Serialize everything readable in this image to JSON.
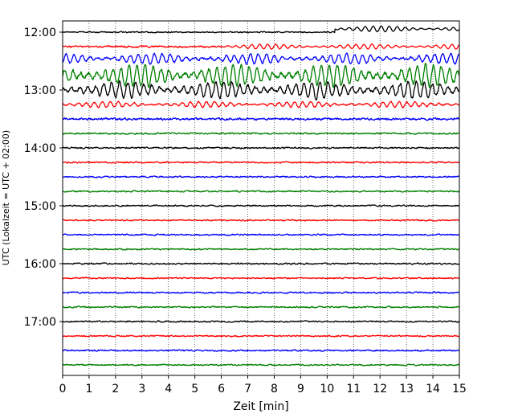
{
  "chart_data": {
    "type": "line",
    "title": "",
    "xlabel": "Zeit  [min]",
    "ylabel": "UTC (Lokalzeit = UTC + 02:00)",
    "xlim": [
      0,
      15
    ],
    "x_ticks": [
      "0",
      "1",
      "2",
      "3",
      "4",
      "5",
      "6",
      "7",
      "8",
      "9",
      "10",
      "11",
      "12",
      "13",
      "14",
      "15"
    ],
    "y_tick_labels": [
      "12:00",
      "13:00",
      "14:00",
      "15:00",
      "16:00",
      "17:00"
    ],
    "grid": "vertical dotted lines at each minute",
    "trace_interval_min": 15,
    "color_cycle": [
      "#000000",
      "#ff0000",
      "#0000ff",
      "#008000"
    ],
    "traces": [
      {
        "start": "12:00",
        "color": "#000000",
        "amplitude": 1.2,
        "event": {
          "from": 10.3,
          "to": 15,
          "amplitude": 3.5,
          "offset": -4
        }
      },
      {
        "start": "12:15",
        "color": "#ff0000",
        "amplitude": 1.8,
        "event": {
          "from": 6,
          "to": 15,
          "amplitude": 3,
          "offset": 0
        }
      },
      {
        "start": "12:30",
        "color": "#0000ff",
        "amplitude": 6,
        "event": {
          "from": 0,
          "to": 15,
          "amplitude": 6,
          "offset": -3
        }
      },
      {
        "start": "12:45",
        "color": "#008000",
        "amplitude": 12,
        "event": {
          "from": 0,
          "to": 15,
          "amplitude": 13,
          "offset": 0
        }
      },
      {
        "start": "13:00",
        "color": "#000000",
        "amplitude": 10,
        "event": {
          "from": 0,
          "to": 15,
          "amplitude": 10,
          "offset": 0
        }
      },
      {
        "start": "13:15",
        "color": "#ff0000",
        "amplitude": 4,
        "event": {
          "from": 0,
          "to": 15,
          "amplitude": 3.5,
          "offset": 0
        }
      },
      {
        "start": "13:30",
        "color": "#0000ff",
        "amplitude": 2.2
      },
      {
        "start": "13:45",
        "color": "#008000",
        "amplitude": 1.6
      },
      {
        "start": "14:00",
        "color": "#000000",
        "amplitude": 1.6
      },
      {
        "start": "14:15",
        "color": "#ff0000",
        "amplitude": 1.5
      },
      {
        "start": "14:30",
        "color": "#0000ff",
        "amplitude": 1.5
      },
      {
        "start": "14:45",
        "color": "#008000",
        "amplitude": 1.5
      },
      {
        "start": "15:00",
        "color": "#000000",
        "amplitude": 1.4
      },
      {
        "start": "15:15",
        "color": "#ff0000",
        "amplitude": 1.4
      },
      {
        "start": "15:30",
        "color": "#0000ff",
        "amplitude": 1.4
      },
      {
        "start": "15:45",
        "color": "#008000",
        "amplitude": 1.4
      },
      {
        "start": "16:00",
        "color": "#000000",
        "amplitude": 1.5
      },
      {
        "start": "16:15",
        "color": "#ff0000",
        "amplitude": 1.5
      },
      {
        "start": "16:30",
        "color": "#0000ff",
        "amplitude": 1.5
      },
      {
        "start": "16:45",
        "color": "#008000",
        "amplitude": 1.5
      },
      {
        "start": "17:00",
        "color": "#000000",
        "amplitude": 1.4
      },
      {
        "start": "17:15",
        "color": "#ff0000",
        "amplitude": 1.5
      },
      {
        "start": "17:30",
        "color": "#0000ff",
        "amplitude": 1.5
      },
      {
        "start": "17:45",
        "color": "#008000",
        "amplitude": 1.4
      }
    ]
  }
}
